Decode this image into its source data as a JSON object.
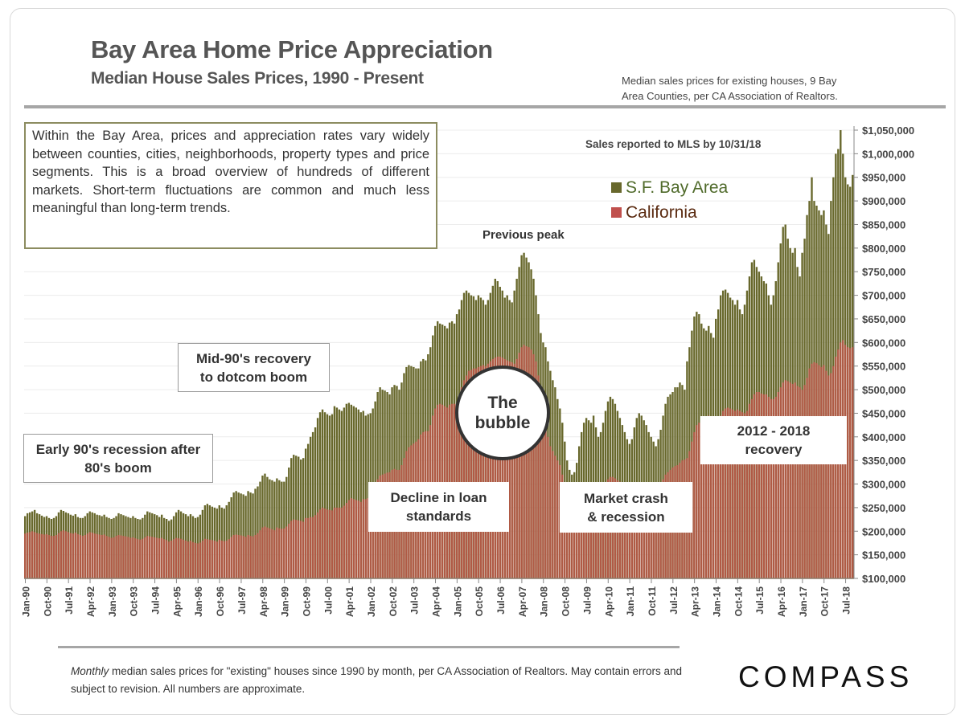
{
  "header": {
    "title": "Bay Area Home Price Appreciation",
    "subtitle": "Median House Sales Prices, 1990 - Present",
    "source_note_line1": "Median sales prices for existing houses, 9 Bay",
    "source_note_line2": "Area Counties, per CA Association  of Realtors."
  },
  "annotations": {
    "intro": "Within the Bay Area, prices and appreciation rates vary widely between counties, cities, neighborhoods, property types and price segments. This is a broad overview of hundreds of different markets. Short-term fluctuations are common and much less meaningful than long-term trends.",
    "mls_note": "Sales reported to MLS by 10/31/18",
    "previous_peak": "Previous peak",
    "mid90_line1": "Mid-90's recovery",
    "mid90_line2": "to dotcom boom",
    "early90_line1": "Early 90's recession after",
    "early90_line2": "80's boom",
    "loan_line1": "Decline in loan",
    "loan_line2": "standards",
    "bubble_line1": "The",
    "bubble_line2": "bubble",
    "crash_line1": "Market crash",
    "crash_line2": "& recession",
    "recovery_line1": "2012 - 2018",
    "recovery_line2": "recovery"
  },
  "footer": {
    "note_italic": "Monthly",
    "note_rest": " median sales prices for \"existing\" houses since 1990 by month, per CA Association of Realtors.  May contain errors and subject to revision. All numbers are approximate.",
    "logo": "COMPASS"
  },
  "chart_data": {
    "type": "bar",
    "title": "Bay Area Home Price Appreciation",
    "subtitle": "Median House Sales Prices, 1990 - Present",
    "x_start": "Jan-90",
    "x_end": "Oct-18",
    "x_frequency": "monthly",
    "x_tick_labels": [
      "Jan-90",
      "Oct-90",
      "Jul-91",
      "Apr-92",
      "Jan-93",
      "Oct-93",
      "Jul-94",
      "Apr-95",
      "Jan-96",
      "Oct-96",
      "Jul-97",
      "Apr-98",
      "Jan-99",
      "Oct-99",
      "Jul-00",
      "Apr-01",
      "Jan-02",
      "Oct-02",
      "Jul-03",
      "Apr-04",
      "Jan-05",
      "Oct-05",
      "Jul-06",
      "Apr-07",
      "Jan-08",
      "Oct-08",
      "Jul-09",
      "Apr-10",
      "Jan-11",
      "Oct-11",
      "Jul-12",
      "Apr-13",
      "Jan-14",
      "Oct-14",
      "Jul-15",
      "Apr-16",
      "Jan-17",
      "Oct-17",
      "Jul-18"
    ],
    "y_tick_labels": [
      "$100,000",
      "$150,000",
      "$200,000",
      "$250,000",
      "$300,000",
      "$350,000",
      "$400,000",
      "$450,000",
      "$500,000",
      "$550,000",
      "$600,000",
      "$650,000",
      "$700,000",
      "$750,000",
      "$800,000",
      "$850,000",
      "$900,000",
      "$950,000",
      "$1,000,000",
      "$1,050,000"
    ],
    "ylim": [
      100000,
      1050000
    ],
    "y_axis_position": "right",
    "grid": true,
    "legend_position": "top-right",
    "overlapping_bars": true,
    "series": [
      {
        "name": "S.F. Bay Area",
        "color": "#68682c",
        "values": [
          232000,
          238000,
          240000,
          242000,
          245000,
          238000,
          236000,
          233000,
          230000,
          232000,
          228000,
          226000,
          228000,
          232000,
          240000,
          245000,
          243000,
          240000,
          238000,
          235000,
          233000,
          236000,
          230000,
          228000,
          228000,
          232000,
          238000,
          242000,
          240000,
          238000,
          235000,
          234000,
          232000,
          235000,
          230000,
          228000,
          226000,
          228000,
          232000,
          238000,
          236000,
          234000,
          232000,
          230000,
          228000,
          232000,
          228000,
          226000,
          225000,
          228000,
          235000,
          242000,
          240000,
          238000,
          236000,
          234000,
          230000,
          235000,
          228000,
          226000,
          222000,
          225000,
          232000,
          240000,
          245000,
          242000,
          238000,
          236000,
          232000,
          236000,
          232000,
          228000,
          230000,
          235000,
          245000,
          255000,
          258000,
          255000,
          252000,
          250000,
          248000,
          255000,
          250000,
          248000,
          255000,
          262000,
          272000,
          282000,
          285000,
          282000,
          280000,
          278000,
          275000,
          285000,
          282000,
          280000,
          290000,
          295000,
          305000,
          318000,
          322000,
          315000,
          310000,
          308000,
          305000,
          312000,
          308000,
          305000,
          305000,
          315000,
          335000,
          355000,
          362000,
          360000,
          358000,
          352000,
          355000,
          375000,
          385000,
          400000,
          410000,
          420000,
          440000,
          452000,
          458000,
          452000,
          448000,
          445000,
          448000,
          465000,
          462000,
          458000,
          455000,
          462000,
          470000,
          472000,
          468000,
          465000,
          462000,
          458000,
          452000,
          455000,
          445000,
          448000,
          450000,
          460000,
          475000,
          495000,
          505000,
          500000,
          498000,
          495000,
          490000,
          505000,
          510000,
          508000,
          500000,
          515000,
          535000,
          548000,
          552000,
          550000,
          548000,
          545000,
          545000,
          560000,
          565000,
          562000,
          575000,
          590000,
          615000,
          635000,
          645000,
          640000,
          638000,
          635000,
          630000,
          642000,
          645000,
          640000,
          660000,
          670000,
          690000,
          705000,
          710000,
          705000,
          700000,
          698000,
          690000,
          700000,
          695000,
          690000,
          680000,
          690000,
          705000,
          720000,
          735000,
          730000,
          718000,
          710000,
          695000,
          700000,
          690000,
          685000,
          710000,
          735000,
          760000,
          785000,
          790000,
          780000,
          770000,
          755000,
          735000,
          700000,
          660000,
          620000,
          600000,
          590000,
          560000,
          540000,
          520000,
          505000,
          480000,
          460000,
          430000,
          390000,
          350000,
          330000,
          320000,
          325000,
          345000,
          380000,
          410000,
          430000,
          440000,
          435000,
          430000,
          445000,
          420000,
          400000,
          410000,
          430000,
          455000,
          475000,
          485000,
          480000,
          470000,
          455000,
          440000,
          425000,
          410000,
          395000,
          385000,
          395000,
          420000,
          440000,
          450000,
          445000,
          435000,
          425000,
          410000,
          400000,
          390000,
          380000,
          395000,
          415000,
          445000,
          470000,
          485000,
          490000,
          495000,
          505000,
          505000,
          515000,
          510000,
          500000,
          560000,
          590000,
          625000,
          655000,
          665000,
          660000,
          640000,
          630000,
          625000,
          635000,
          620000,
          610000,
          650000,
          670000,
          700000,
          710000,
          712000,
          705000,
          695000,
          690000,
          680000,
          690000,
          670000,
          660000,
          680000,
          710000,
          740000,
          770000,
          775000,
          760000,
          750000,
          740000,
          730000,
          725000,
          700000,
          680000,
          700000,
          730000,
          770000,
          810000,
          845000,
          850000,
          820000,
          800000,
          790000,
          800000,
          760000,
          740000,
          790000,
          820000,
          870000,
          900000,
          950000,
          900000,
          890000,
          880000,
          870000,
          880000,
          850000,
          830000,
          900000,
          950000,
          1000000,
          1010000,
          1050000,
          1000000,
          950000,
          935000,
          930000,
          955000
        ]
      },
      {
        "name": "California",
        "color": "#b05a45",
        "values": [
          195000,
          197000,
          198000,
          200000,
          198000,
          196000,
          195000,
          194000,
          193000,
          194000,
          192000,
          190000,
          190000,
          192000,
          196000,
          200000,
          202000,
          200000,
          198000,
          196000,
          195000,
          197000,
          194000,
          192000,
          190000,
          192000,
          195000,
          198000,
          197000,
          195000,
          194000,
          193000,
          192000,
          193000,
          190000,
          188000,
          186000,
          187000,
          190000,
          192000,
          191000,
          190000,
          189000,
          188000,
          186000,
          187000,
          185000,
          183000,
          182000,
          184000,
          187000,
          190000,
          189000,
          188000,
          187000,
          186000,
          185000,
          186000,
          183000,
          181000,
          178000,
          180000,
          183000,
          186000,
          185000,
          184000,
          182000,
          180000,
          178000,
          180000,
          177000,
          175000,
          174000,
          176000,
          180000,
          184000,
          183000,
          182000,
          181000,
          180000,
          178000,
          182000,
          180000,
          179000,
          180000,
          183000,
          188000,
          192000,
          193000,
          192000,
          191000,
          190000,
          188000,
          192000,
          190000,
          189000,
          192000,
          196000,
          202000,
          208000,
          210000,
          208000,
          206000,
          204000,
          202000,
          208000,
          206000,
          205000,
          206000,
          210000,
          216000,
          222000,
          225000,
          224000,
          223000,
          222000,
          220000,
          228000,
          228000,
          230000,
          230000,
          234000,
          240000,
          246000,
          250000,
          248000,
          246000,
          245000,
          244000,
          250000,
          250000,
          250000,
          250000,
          254000,
          260000,
          266000,
          270000,
          268000,
          266000,
          265000,
          262000,
          268000,
          268000,
          270000,
          272000,
          280000,
          295000,
          310000,
          318000,
          320000,
          322000,
          324000,
          325000,
          330000,
          332000,
          330000,
          330000,
          340000,
          355000,
          370000,
          378000,
          382000,
          386000,
          390000,
          395000,
          405000,
          410000,
          412000,
          412000,
          425000,
          445000,
          460000,
          468000,
          470000,
          468000,
          465000,
          462000,
          468000,
          470000,
          470000,
          470000,
          485000,
          505000,
          520000,
          530000,
          540000,
          542000,
          545000,
          545000,
          548000,
          550000,
          552000,
          550000,
          555000,
          560000,
          565000,
          568000,
          570000,
          570000,
          568000,
          565000,
          562000,
          560000,
          558000,
          555000,
          565000,
          578000,
          590000,
          595000,
          592000,
          590000,
          585000,
          575000,
          560000,
          530000,
          500000,
          460000,
          430000,
          400000,
          380000,
          370000,
          360000,
          350000,
          340000,
          320000,
          300000,
          280000,
          265000,
          255000,
          250000,
          255000,
          265000,
          270000,
          275000,
          280000,
          285000,
          285000,
          290000,
          290000,
          292000,
          290000,
          295000,
          300000,
          310000,
          315000,
          315000,
          312000,
          308000,
          305000,
          302000,
          300000,
          298000,
          290000,
          285000,
          290000,
          295000,
          298000,
          298000,
          296000,
          294000,
          292000,
          290000,
          290000,
          292000,
          295000,
          300000,
          310000,
          320000,
          325000,
          330000,
          335000,
          338000,
          340000,
          345000,
          350000,
          352000,
          355000,
          370000,
          390000,
          410000,
          425000,
          430000,
          435000,
          440000,
          440000,
          445000,
          440000,
          438000,
          430000,
          435000,
          445000,
          455000,
          460000,
          462000,
          460000,
          458000,
          455000,
          458000,
          455000,
          452000,
          450000,
          455000,
          470000,
          480000,
          490000,
          495000,
          495000,
          492000,
          490000,
          490000,
          485000,
          480000,
          480000,
          485000,
          495000,
          505000,
          515000,
          520000,
          518000,
          515000,
          512000,
          515000,
          508000,
          505000,
          500000,
          510000,
          525000,
          545000,
          555000,
          558000,
          556000,
          552000,
          548000,
          552000,
          540000,
          530000,
          535000,
          550000,
          570000,
          585000,
          600000,
          605000,
          595000,
          590000,
          588000,
          590000
        ]
      }
    ]
  }
}
